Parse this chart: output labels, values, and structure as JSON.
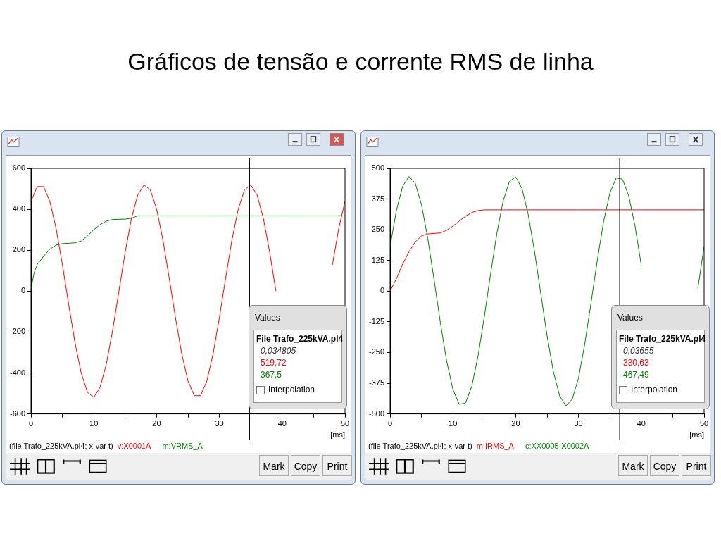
{
  "chart_data": [
    {
      "type": "line",
      "title": "Gráficos de tensão e corrente RMS de linha",
      "xlabel": "[ms]",
      "legend": "bottom",
      "xlim": [
        0,
        50
      ],
      "xticks": [
        0,
        {
          "value": 5,
          "label": null
        },
        10,
        {
          "value": 15,
          "label": null
        },
        20,
        {
          "value": 25,
          "label": null
        },
        30,
        {
          "value": 35,
          "label": null
        },
        40,
        {
          "value": 45,
          "label": null
        },
        50
      ],
      "ylim": [
        -600,
        600
      ],
      "yticks": [
        -600,
        -400,
        -200,
        0,
        200,
        400,
        600
      ],
      "series": [
        {
          "name": "v:X0001A",
          "color": "#ff0000",
          "x": [
            0,
            1,
            2,
            3,
            4,
            5,
            6,
            7,
            8,
            9,
            10,
            11,
            12,
            13,
            14,
            15,
            16,
            17,
            18,
            19,
            20,
            21,
            22,
            23,
            24,
            25,
            26,
            27,
            28,
            29,
            30,
            31,
            32,
            33,
            34,
            35,
            36,
            37,
            38,
            39,
            40,
            41,
            42,
            43,
            44,
            45,
            46,
            47,
            48,
            49,
            50
          ],
          "values": [
            439,
            511,
            511,
            439,
            306,
            129,
            -65,
            -251,
            -401,
            -495,
            -519,
            -470,
            -356,
            -191,
            0,
            191,
            356,
            470,
            519,
            495,
            401,
            251,
            65,
            -129,
            -306,
            -439,
            -511,
            -511,
            -439,
            -306,
            -129,
            65,
            251,
            401,
            495,
            519,
            470,
            356,
            191,
            0,
            null,
            null,
            null,
            null,
            null,
            null,
            null,
            null,
            129,
            306,
            439
          ]
        },
        {
          "name": "m:VRMS_A",
          "color": "#008000",
          "x": [
            0,
            0.5,
            1,
            2,
            3,
            4,
            5,
            6,
            7,
            8,
            9,
            10,
            11,
            12,
            13,
            14,
            15,
            16,
            17,
            20,
            30,
            40,
            50
          ],
          "values": [
            10,
            90,
            130,
            170,
            205,
            225,
            232,
            234,
            236,
            245,
            270,
            300,
            325,
            342,
            350,
            351,
            352,
            356,
            368,
            368,
            368,
            368,
            368
          ]
        }
      ],
      "ref_lines": [
        {
          "axis": "x",
          "value": 34.805,
          "color": "#000000"
        }
      ],
      "annotations": [
        "(file Trafo_225kVA.pl4; x-var t)",
        "Values",
        "File Trafo_225kVA.pl4",
        "0,034805",
        "519,72",
        "367,5",
        "Interpolation",
        "Mark",
        "Copy",
        "Print"
      ]
    },
    {
      "type": "line",
      "xlabel": "[ms]",
      "legend": "bottom",
      "xlim": [
        0,
        50
      ],
      "xticks": [
        0,
        {
          "value": 5,
          "label": null
        },
        10,
        {
          "value": 15,
          "label": null
        },
        20,
        {
          "value": 25,
          "label": null
        },
        30,
        {
          "value": 35,
          "label": null
        },
        40,
        {
          "value": 45,
          "label": null
        },
        50
      ],
      "ylim": [
        -500,
        500
      ],
      "yticks": [
        -500,
        -375,
        -250,
        -125,
        0,
        125,
        250,
        375,
        500
      ],
      "series": [
        {
          "name": "m:IRMS_A",
          "color": "#ff0000",
          "x": [
            0,
            1,
            2,
            3,
            4,
            5,
            6,
            7,
            8,
            9,
            10,
            11,
            12,
            13,
            14,
            15,
            20,
            30,
            40,
            50
          ],
          "values": [
            0,
            50,
            110,
            160,
            200,
            225,
            233,
            235,
            237,
            248,
            265,
            285,
            305,
            320,
            328,
            331,
            331,
            331,
            331,
            331
          ]
        },
        {
          "name": "c:XX0005-X0002A",
          "color": "#008000",
          "x": [
            0,
            1,
            2,
            3,
            4,
            5,
            6,
            7,
            8,
            9,
            10,
            11,
            12,
            13,
            14,
            15,
            16,
            17,
            18,
            19,
            20,
            21,
            22,
            23,
            24,
            25,
            26,
            27,
            28,
            29,
            30,
            31,
            32,
            33,
            34,
            35,
            36,
            37,
            38,
            39,
            40,
            41,
            42,
            43,
            44,
            45,
            46,
            47,
            48,
            49,
            50
          ],
          "values": [
            182,
            328,
            427,
            467,
            440,
            352,
            215,
            47,
            -127,
            -284,
            -400,
            -461,
            -456,
            -388,
            -265,
            -105,
            70,
            235,
            367,
            447,
            465,
            418,
            311,
            161,
            -11,
            -182,
            -328,
            -427,
            -467,
            -440,
            -354,
            -215,
            -47,
            127,
            284,
            400,
            461,
            456,
            388,
            265,
            105,
            null,
            null,
            null,
            null,
            null,
            null,
            null,
            null,
            11,
            182
          ]
        }
      ],
      "ref_lines": [
        {
          "axis": "x",
          "value": 36.55,
          "color": "#000000"
        }
      ],
      "annotations": [
        "(file Trafo_225kVA.pl4; x-var t)",
        "Values",
        "File Trafo_225kVA.pl4",
        "0,03655",
        "330,63",
        "467,49",
        "Interpolation",
        "Mark",
        "Copy",
        "Print"
      ]
    }
  ]
}
